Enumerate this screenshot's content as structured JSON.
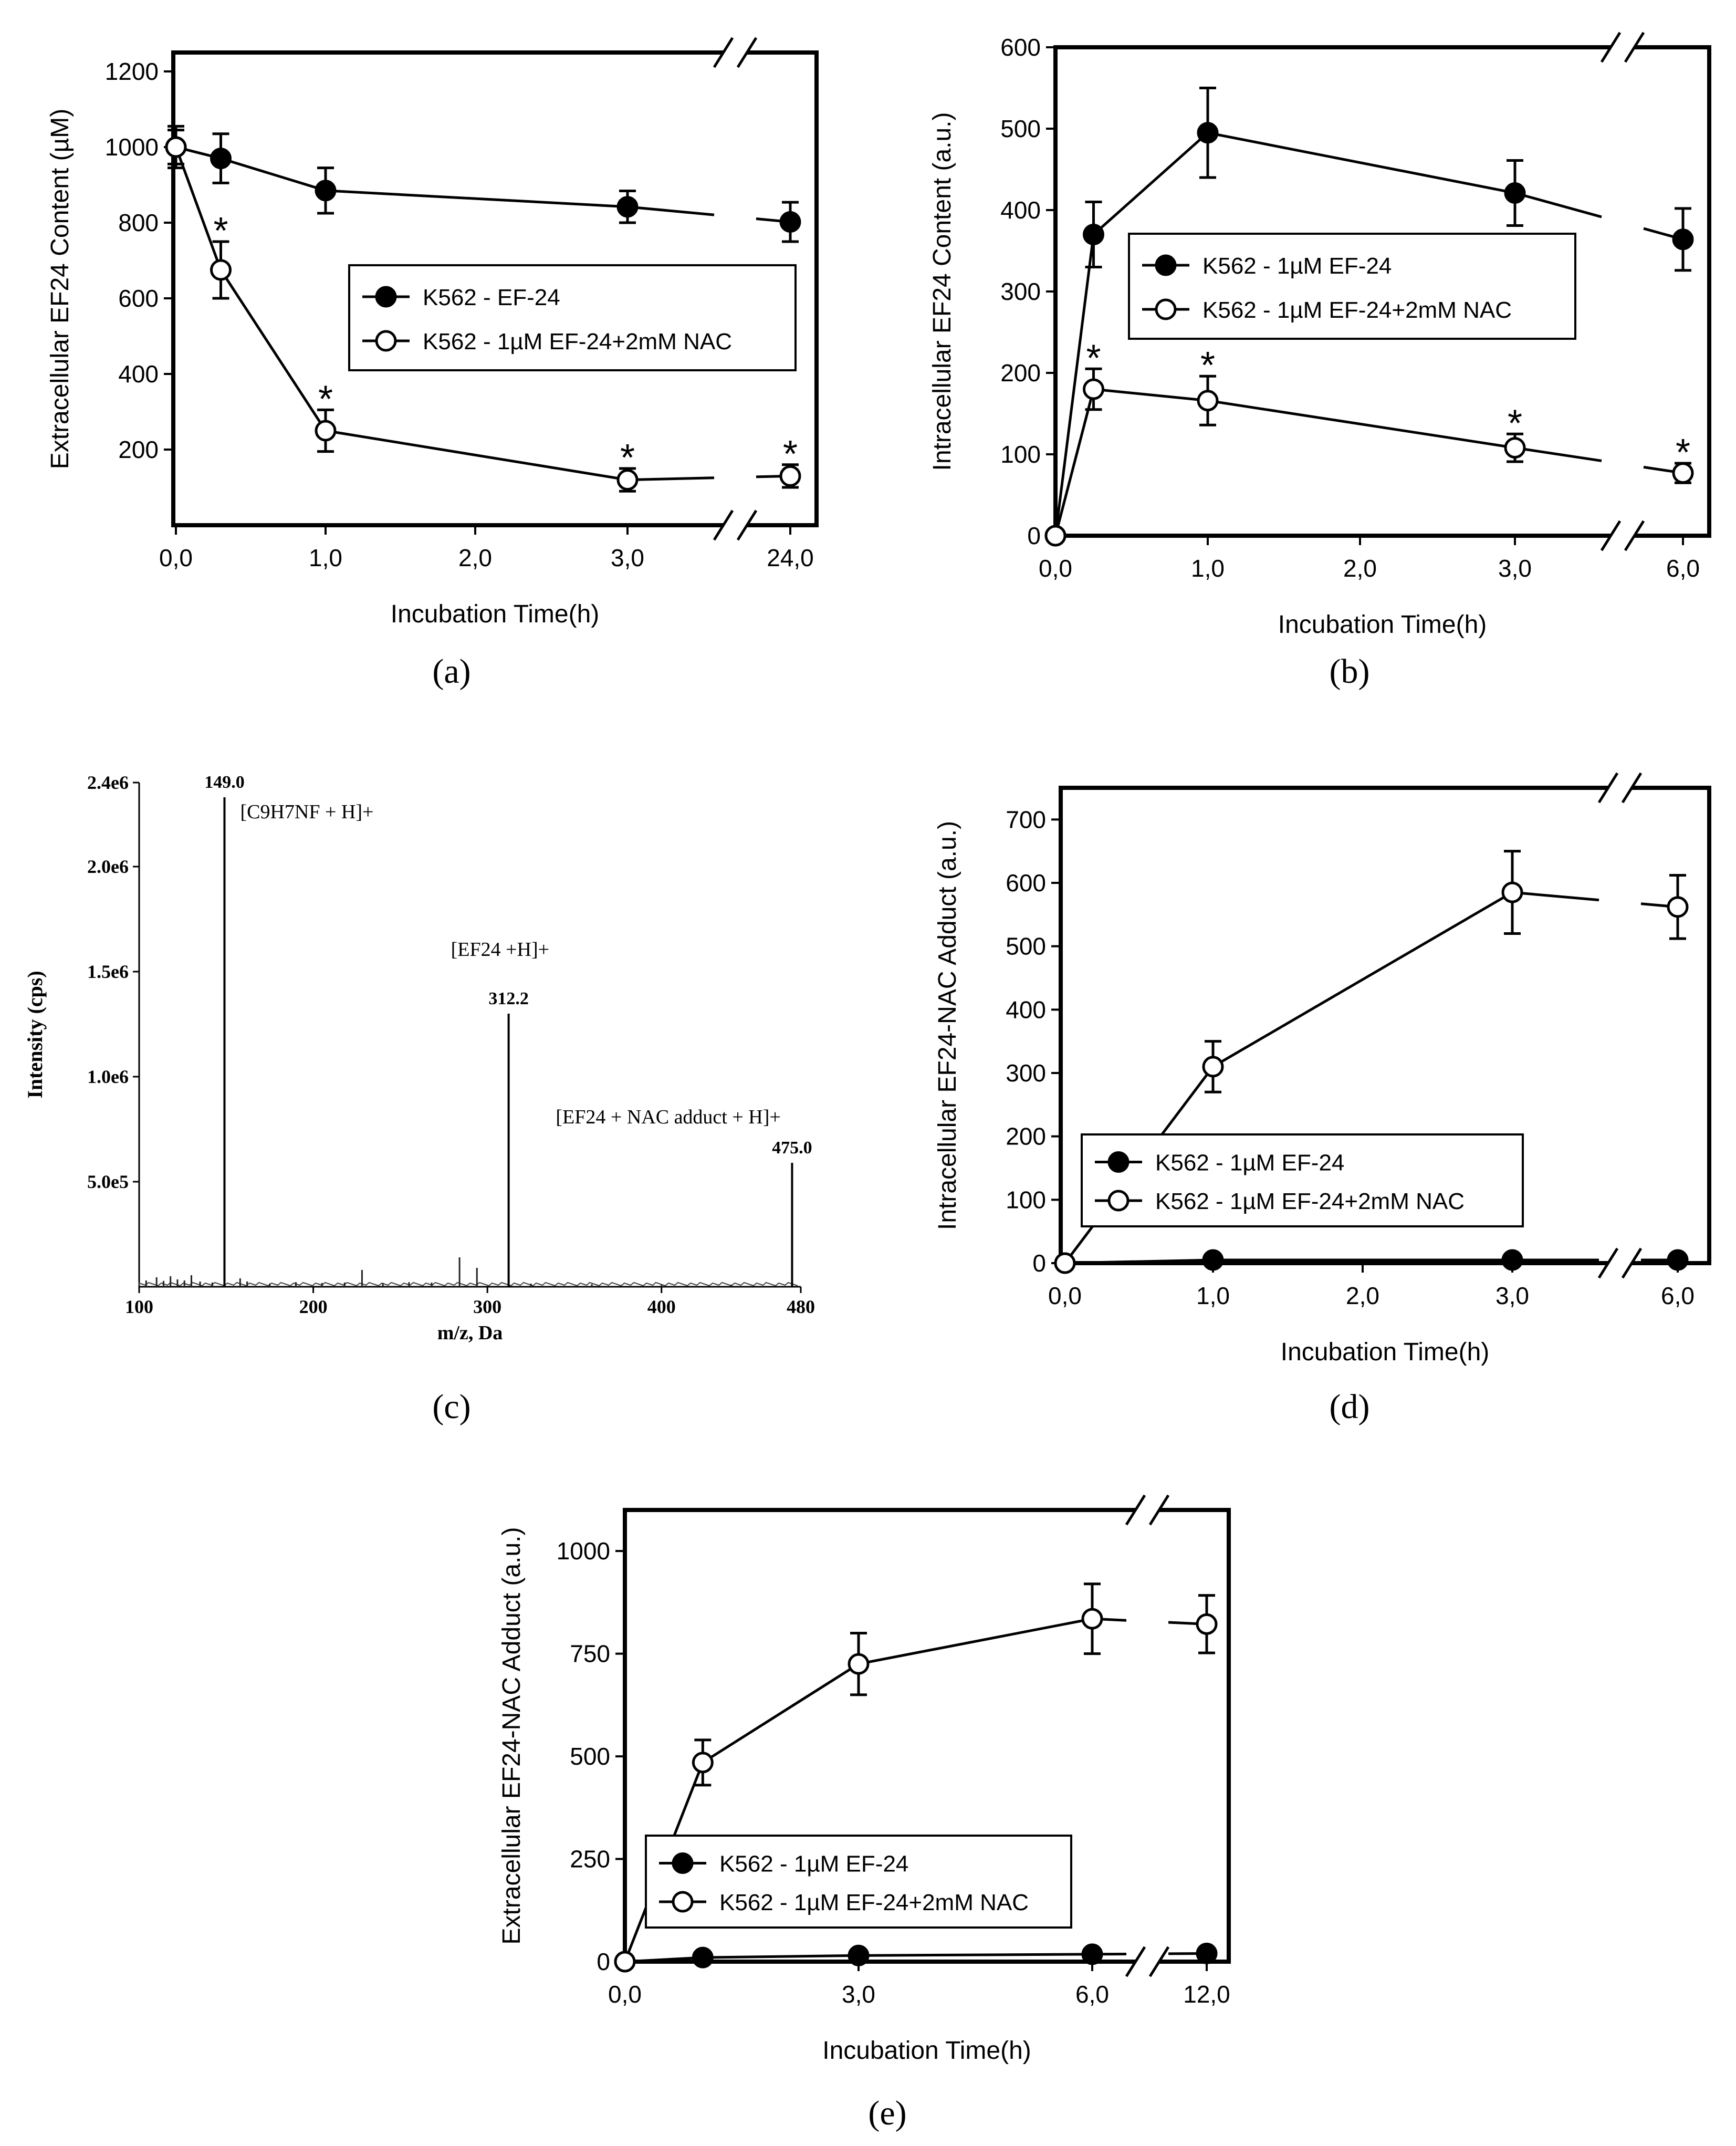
{
  "chart_data": [
    {
      "panel": "a",
      "type": "line",
      "caption": "(a)",
      "xlabel": "Incubation Time(h)",
      "ylabel": "Extracellular EF24 Content (µM)",
      "x_ticks": [
        "0,0",
        "1,0",
        "2,0",
        "3,0",
        "24,0"
      ],
      "y_ticks": [
        "200",
        "400",
        "600",
        "800",
        "1000",
        "1200"
      ],
      "ylim": [
        0,
        1250
      ],
      "axis_break": true,
      "legend_position": "center-right",
      "series": [
        {
          "name": "K562 - EF-24",
          "marker": "filled-circle",
          "x": [
            0,
            0.3,
            1,
            3,
            24
          ],
          "values": [
            1000,
            970,
            885,
            842,
            802
          ],
          "errors": [
            55,
            65,
            60,
            42,
            52
          ],
          "significant": [
            false,
            false,
            false,
            false,
            false
          ]
        },
        {
          "name": "K562 - 1µM EF-24+2mM NAC",
          "marker": "open-circle",
          "x": [
            0,
            0.3,
            1,
            3,
            24
          ],
          "values": [
            1000,
            675,
            250,
            120,
            130
          ],
          "errors": [
            45,
            75,
            55,
            30,
            30
          ],
          "significant": [
            false,
            true,
            true,
            true,
            true
          ]
        }
      ]
    },
    {
      "panel": "b",
      "type": "line",
      "caption": "(b)",
      "xlabel": "Incubation Time(h)",
      "ylabel": "Intracellular EF24 Content (a.u.)",
      "x_ticks": [
        "0,0",
        "1,0",
        "2,0",
        "3,0",
        "6,0"
      ],
      "y_ticks": [
        "0",
        "100",
        "200",
        "300",
        "400",
        "500",
        "600"
      ],
      "ylim": [
        0,
        600
      ],
      "axis_break": true,
      "legend_position": "center-right",
      "series": [
        {
          "name": "K562 - 1µM EF-24",
          "marker": "filled-circle",
          "x": [
            0,
            0.25,
            1,
            3,
            6
          ],
          "values": [
            0,
            370,
            495,
            421,
            364
          ],
          "errors": [
            0,
            40,
            55,
            40,
            38
          ],
          "significant": [
            false,
            false,
            false,
            false,
            false
          ]
        },
        {
          "name": "K562 - 1µM EF-24+2mM NAC",
          "marker": "open-circle",
          "x": [
            0,
            0.25,
            1,
            3,
            6
          ],
          "values": [
            0,
            180,
            166,
            108,
            77
          ],
          "errors": [
            0,
            25,
            30,
            17,
            12
          ],
          "significant": [
            false,
            true,
            true,
            true,
            true
          ]
        }
      ]
    },
    {
      "panel": "c",
      "type": "bar",
      "caption": "(c)",
      "xlabel": "m/z, Da",
      "ylabel": "Intensity (cps)",
      "x_ticks": [
        "100",
        "200",
        "300",
        "400",
        "480"
      ],
      "y_ticks": [
        "5.0e5",
        "1.0e6",
        "1.5e6",
        "2.0e6",
        "2.4e6"
      ],
      "xlim": [
        100,
        480
      ],
      "ylim": [
        0,
        2400000
      ],
      "peaks": [
        {
          "mz": 149.0,
          "intensity": 2330000,
          "value_label": "149.0",
          "ion_label": "[C9H7NF + H]+"
        },
        {
          "mz": 312.2,
          "intensity": 1300000,
          "value_label": "312.2",
          "ion_label": "[EF24 +H]+"
        },
        {
          "mz": 475.0,
          "intensity": 590000,
          "value_label": "475.0",
          "ion_label": "[EF24 + NAC adduct + H]+"
        }
      ],
      "minor_peaks": [
        {
          "mz": 104,
          "intensity": 30000
        },
        {
          "mz": 110,
          "intensity": 45000
        },
        {
          "mz": 114,
          "intensity": 28000
        },
        {
          "mz": 118,
          "intensity": 50000
        },
        {
          "mz": 122,
          "intensity": 35000
        },
        {
          "mz": 126,
          "intensity": 30000
        },
        {
          "mz": 130,
          "intensity": 55000
        },
        {
          "mz": 135,
          "intensity": 25000
        },
        {
          "mz": 142,
          "intensity": 20000
        },
        {
          "mz": 158,
          "intensity": 40000
        },
        {
          "mz": 162,
          "intensity": 25000
        },
        {
          "mz": 175,
          "intensity": 15000
        },
        {
          "mz": 190,
          "intensity": 22000
        },
        {
          "mz": 205,
          "intensity": 18000
        },
        {
          "mz": 218,
          "intensity": 20000
        },
        {
          "mz": 228,
          "intensity": 80000
        },
        {
          "mz": 240,
          "intensity": 18000
        },
        {
          "mz": 255,
          "intensity": 22000
        },
        {
          "mz": 268,
          "intensity": 20000
        },
        {
          "mz": 284,
          "intensity": 140000
        },
        {
          "mz": 294,
          "intensity": 90000
        },
        {
          "mz": 325,
          "intensity": 15000
        },
        {
          "mz": 360,
          "intensity": 12000
        },
        {
          "mz": 400,
          "intensity": 10000
        },
        {
          "mz": 440,
          "intensity": 10000
        }
      ]
    },
    {
      "panel": "d",
      "type": "line",
      "caption": "(d)",
      "xlabel": "Incubation Time(h)",
      "ylabel": "Intracellular EF24-NAC Adduct (a.u.)",
      "x_ticks": [
        "0,0",
        "1,0",
        "2,0",
        "3,0",
        "6,0"
      ],
      "y_ticks": [
        "0",
        "100",
        "200",
        "300",
        "400",
        "500",
        "600",
        "700"
      ],
      "ylim": [
        0,
        750
      ],
      "axis_break": true,
      "legend_position": "bottom-left",
      "series": [
        {
          "name": "K562 - 1µM EF-24",
          "marker": "filled-circle",
          "x": [
            0,
            1,
            3,
            6
          ],
          "values": [
            0,
            5,
            5,
            5
          ],
          "errors": [
            0,
            0,
            0,
            0
          ]
        },
        {
          "name": "K562 - 1µM EF-24+2mM NAC",
          "marker": "open-circle",
          "x": [
            0,
            1,
            3,
            6
          ],
          "values": [
            0,
            310,
            585,
            562
          ],
          "errors": [
            0,
            40,
            65,
            50
          ]
        }
      ]
    },
    {
      "panel": "e",
      "type": "line",
      "caption": "(e)",
      "xlabel": "Incubation Time(h)",
      "ylabel": "Extracellular EF24-NAC Adduct (a.u.)",
      "x_ticks": [
        "0,0",
        "3,0",
        "6,0",
        "12,0"
      ],
      "y_ticks": [
        "0",
        "250",
        "500",
        "750",
        "1000"
      ],
      "ylim": [
        0,
        1100
      ],
      "axis_break": true,
      "legend_position": "bottom-left",
      "series": [
        {
          "name": "K562 - 1µM EF-24",
          "marker": "filled-circle",
          "x": [
            0,
            1,
            3,
            6,
            12
          ],
          "values": [
            0,
            10,
            15,
            18,
            20
          ],
          "errors": [
            0,
            0,
            0,
            0,
            0
          ]
        },
        {
          "name": "K562 - 1µM EF-24+2mM NAC",
          "marker": "open-circle",
          "x": [
            0,
            1,
            3,
            6,
            12
          ],
          "values": [
            0,
            485,
            725,
            835,
            822
          ],
          "errors": [
            0,
            55,
            75,
            85,
            70
          ]
        }
      ]
    }
  ]
}
